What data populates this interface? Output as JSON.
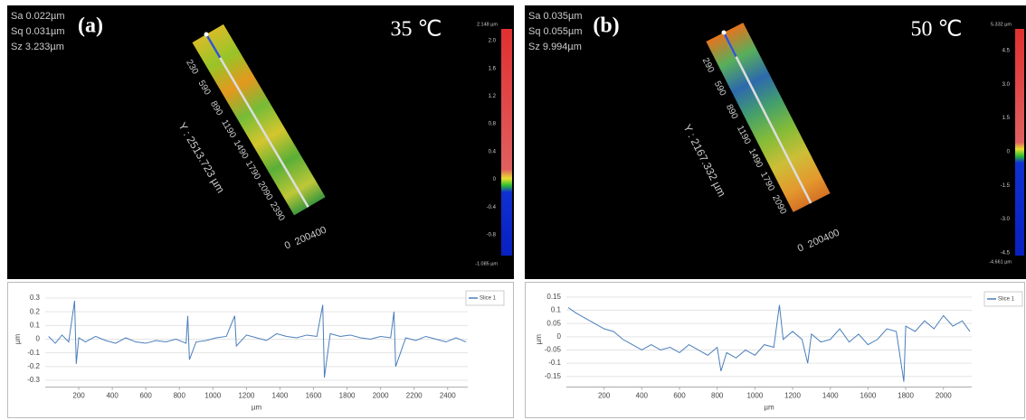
{
  "panels": [
    {
      "label": "(a)",
      "temperature": "35 ℃",
      "stats": [
        "Sa 0.022µm",
        "Sq 0.031µm",
        "Sz 3.233µm"
      ],
      "y_axis_title": "Y : 2513.723 µm",
      "along_ticks": [
        "230",
        "590",
        "890",
        "1190",
        "1490",
        "1790",
        "2090",
        "2390"
      ],
      "across_ticks": [
        "0",
        "200",
        "400"
      ],
      "colorbar": {
        "top": "2.148 µm",
        "bottom": "-1.085 µm",
        "ticks": [
          "2.0",
          "1.6",
          "1.2",
          "0.8",
          "0.4",
          "0",
          "-0.4",
          "-0.8"
        ]
      }
    },
    {
      "label": "(b)",
      "temperature": "50 ℃",
      "stats": [
        "Sa 0.035µm",
        "Sq 0.055µm",
        "Sz 9.994µm"
      ],
      "y_axis_title": "Y : 2167.332 µm",
      "along_ticks": [
        "290",
        "590",
        "890",
        "1190",
        "1490",
        "1790",
        "2090"
      ],
      "across_ticks": [
        "0",
        "200",
        "400"
      ],
      "colorbar": {
        "top": "5.332 µm",
        "bottom": "-4.661 µm",
        "ticks": [
          "4.5",
          "3.0",
          "1.5",
          "0",
          "-1.5",
          "-3.0",
          "-4.5"
        ]
      }
    }
  ],
  "chart_data": [
    {
      "type": "line",
      "x_label": "µm",
      "y_label": "µm",
      "legend": "Slice 1",
      "grid": true,
      "xlim": [
        0,
        2520
      ],
      "xticks": [
        200,
        400,
        600,
        800,
        1000,
        1200,
        1400,
        1600,
        1800,
        2000,
        2200,
        2400
      ],
      "ylim": [
        -0.35,
        0.35
      ],
      "yticks": [
        0.3,
        0.2,
        0.1,
        0,
        -0.1,
        -0.2,
        -0.3
      ],
      "x": [
        20,
        60,
        100,
        140,
        175,
        185,
        200,
        240,
        300,
        360,
        420,
        480,
        540,
        600,
        660,
        720,
        780,
        840,
        850,
        860,
        900,
        960,
        1020,
        1080,
        1130,
        1140,
        1200,
        1260,
        1320,
        1380,
        1440,
        1500,
        1560,
        1620,
        1655,
        1665,
        1700,
        1760,
        1820,
        1880,
        1940,
        2000,
        2060,
        2080,
        2090,
        2150,
        2210,
        2270,
        2330,
        2390,
        2450,
        2510
      ],
      "series": [
        {
          "name": "Slice 1",
          "color": "#4a7ebb",
          "values": [
            0.02,
            -0.03,
            0.03,
            -0.02,
            0.28,
            -0.18,
            0.01,
            -0.02,
            0.02,
            -0.01,
            -0.03,
            0.01,
            -0.02,
            -0.03,
            -0.01,
            -0.02,
            0,
            -0.03,
            0.17,
            -0.15,
            -0.02,
            -0.01,
            0.01,
            0.02,
            0.17,
            -0.05,
            0.03,
            0.01,
            -0.01,
            0.04,
            0.02,
            0.01,
            0.03,
            0.02,
            0.25,
            -0.28,
            0.04,
            0.02,
            0.03,
            0.01,
            0,
            0.02,
            0.01,
            0.2,
            -0.2,
            0.01,
            -0.01,
            0.02,
            0,
            -0.02,
            0.01,
            -0.02
          ]
        }
      ]
    },
    {
      "type": "line",
      "x_label": "µm",
      "y_label": "µm",
      "legend": "Slice 1",
      "grid": true,
      "xlim": [
        0,
        2150
      ],
      "xticks": [
        200,
        400,
        600,
        800,
        1000,
        1200,
        1400,
        1600,
        1800,
        2000
      ],
      "ylim": [
        -0.19,
        0.17
      ],
      "yticks": [
        0.15,
        0.1,
        0.05,
        0,
        -0.05,
        -0.1,
        -0.15
      ],
      "x": [
        10,
        50,
        100,
        150,
        200,
        250,
        300,
        350,
        400,
        450,
        500,
        550,
        600,
        650,
        700,
        750,
        800,
        820,
        850,
        900,
        950,
        1000,
        1050,
        1100,
        1130,
        1150,
        1200,
        1250,
        1280,
        1300,
        1350,
        1400,
        1450,
        1500,
        1550,
        1600,
        1650,
        1700,
        1750,
        1790,
        1800,
        1850,
        1900,
        1950,
        2000,
        2050,
        2100,
        2140
      ],
      "series": [
        {
          "name": "Slice 1",
          "color": "#4a7ebb",
          "values": [
            0.11,
            0.09,
            0.07,
            0.05,
            0.03,
            0.02,
            -0.01,
            -0.03,
            -0.05,
            -0.03,
            -0.05,
            -0.04,
            -0.06,
            -0.03,
            -0.05,
            -0.07,
            -0.04,
            -0.13,
            -0.06,
            -0.08,
            -0.05,
            -0.07,
            -0.03,
            -0.04,
            0.12,
            -0.01,
            0.02,
            -0.01,
            -0.1,
            0.01,
            -0.02,
            -0.01,
            0.03,
            -0.02,
            0.01,
            -0.03,
            -0.01,
            0.03,
            0.02,
            -0.17,
            0.04,
            0.02,
            0.06,
            0.03,
            0.08,
            0.04,
            0.06,
            0.02
          ]
        }
      ]
    }
  ]
}
